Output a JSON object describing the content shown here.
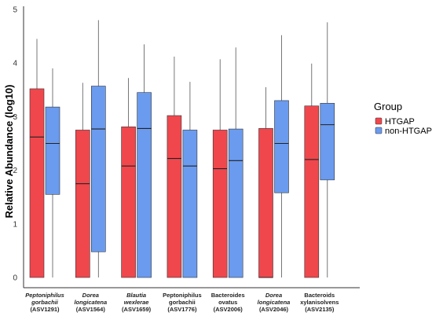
{
  "chart_data": {
    "type": "box",
    "ylabel": "Relative Abundance (log10)",
    "xlabel": "",
    "ylim": [
      0,
      5
    ],
    "yticks": [
      "0",
      "1",
      "2",
      "3",
      "4",
      "5"
    ],
    "grid": false,
    "legend": {
      "title": "Group",
      "placement": "right",
      "entries": [
        {
          "label": "HTGAP",
          "color": "#f0474d"
        },
        {
          "label": "non-HTGAP",
          "color": "#6a9bef"
        }
      ]
    },
    "categories": [
      {
        "lines": [
          "Peptoniphilus",
          "gorbachii"
        ],
        "id": "(ASV1291)",
        "italic": true
      },
      {
        "lines": [
          "Dorea",
          "longicatena"
        ],
        "id": "(ASV1564)",
        "italic": true
      },
      {
        "lines": [
          "Blautia",
          "wexlerae"
        ],
        "id": "(ASV1659)",
        "italic": true
      },
      {
        "lines": [
          "Peptoniphilus",
          "gorbachii"
        ],
        "id": "(ASV1776)",
        "italic": false
      },
      {
        "lines": [
          "Bacteroides",
          "ovatus"
        ],
        "id": "(ASV2006)",
        "italic": false
      },
      {
        "lines": [
          "Dorea",
          "longicatena"
        ],
        "id": "(ASV2046)",
        "italic": true
      },
      {
        "lines": [
          "Bacteroids",
          "xylanisolvens"
        ],
        "id": "(ASV2135)",
        "italic": false
      }
    ],
    "series": [
      {
        "name": "HTGAP",
        "color": "#f0474d",
        "boxes": [
          {
            "min": 0.0,
            "q1": 0.0,
            "median": 2.62,
            "q3": 3.52,
            "max": 4.45
          },
          {
            "min": 0.0,
            "q1": 0.0,
            "median": 1.75,
            "q3": 2.75,
            "max": 3.63
          },
          {
            "min": 0.0,
            "q1": 0.0,
            "median": 2.08,
            "q3": 2.81,
            "max": 3.72
          },
          {
            "min": 0.0,
            "q1": 0.0,
            "median": 2.22,
            "q3": 3.02,
            "max": 4.12
          },
          {
            "min": 0.0,
            "q1": 0.0,
            "median": 2.03,
            "q3": 2.75,
            "max": 4.07
          },
          {
            "min": 0.0,
            "q1": 0.0,
            "median": 0.0,
            "q3": 2.78,
            "max": 3.55
          },
          {
            "min": 0.0,
            "q1": 0.0,
            "median": 2.2,
            "q3": 3.2,
            "max": 3.99
          }
        ]
      },
      {
        "name": "non-HTGAP",
        "color": "#6a9bef",
        "boxes": [
          {
            "min": 0.0,
            "q1": 1.55,
            "median": 2.5,
            "q3": 3.18,
            "max": 3.9
          },
          {
            "min": 0.0,
            "q1": 0.48,
            "median": 2.77,
            "q3": 3.57,
            "max": 4.8
          },
          {
            "min": 0.0,
            "q1": 0.0,
            "median": 2.78,
            "q3": 3.45,
            "max": 4.35
          },
          {
            "min": 0.0,
            "q1": 0.0,
            "median": 2.08,
            "q3": 2.75,
            "max": 3.65
          },
          {
            "min": 0.0,
            "q1": 0.0,
            "median": 2.18,
            "q3": 2.77,
            "max": 4.29
          },
          {
            "min": 0.0,
            "q1": 1.58,
            "median": 2.5,
            "q3": 3.3,
            "max": 4.52
          },
          {
            "min": 0.0,
            "q1": 1.82,
            "median": 2.85,
            "q3": 3.25,
            "max": 4.76
          }
        ]
      }
    ]
  }
}
